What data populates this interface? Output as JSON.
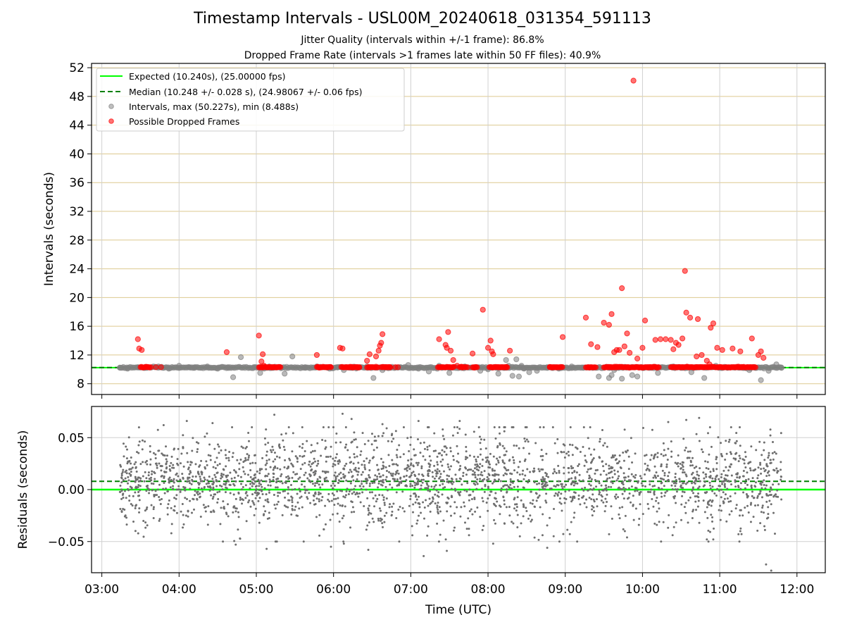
{
  "chart_data": [
    {
      "type": "scatter",
      "panel": "top",
      "title": "Timestamp Intervals - USL00M_20240618_031354_591113",
      "subtitle_1": "Jitter Quality (intervals within +/-1 frame): 86.8%",
      "subtitle_2": "Dropped Frame Rate (intervals >1 frames late within 50 FF files): 40.9%",
      "ylabel": "Intervals (seconds)",
      "xlim": [
        "02:52",
        "12:22"
      ],
      "ylim": [
        6.5,
        52.6
      ],
      "yticks": [
        "8",
        "12",
        "16",
        "20",
        "24",
        "28",
        "32",
        "36",
        "40",
        "44",
        "48",
        "52"
      ],
      "grid": "on",
      "legend_position": "upper-left",
      "legend": [
        {
          "label": "Expected (10.240s), (25.00000 fps)",
          "color": "#00ff00",
          "style": "solid"
        },
        {
          "label": "Median (10.248 +/- 0.028 s), (24.98067 +/- 0.06 fps)",
          "color": "#008000",
          "style": "dashed"
        },
        {
          "label": "Intervals, max (50.227s), min (8.488s)",
          "color": "#808080",
          "style": "marker"
        },
        {
          "label": "Possible Dropped Frames",
          "color": "#ff0000",
          "style": "marker"
        }
      ],
      "expected_interval": 10.24,
      "median_interval": 10.248,
      "interval_points": {
        "x": [
          "03:14",
          "03:20",
          "03:28",
          "03:35",
          "03:44",
          "03:52",
          "04:00",
          "04:08",
          "04:12",
          "04:22",
          "04:30",
          "04:38",
          "04:42",
          "04:48",
          "04:58",
          "05:03",
          "05:06",
          "05:10",
          "05:22",
          "05:28",
          "05:38",
          "05:47",
          "05:57",
          "06:03",
          "06:08",
          "06:18",
          "06:26",
          "06:31",
          "06:38",
          "06:52",
          "06:58",
          "07:06",
          "07:14",
          "07:22",
          "07:30",
          "07:42",
          "07:54",
          "08:00",
          "08:08",
          "08:14",
          "08:16",
          "08:19",
          "08:22",
          "08:24",
          "08:26",
          "08:28",
          "08:32",
          "08:38",
          "08:46",
          "08:55",
          "09:05",
          "09:14",
          "09:26",
          "09:34",
          "09:36",
          "09:38",
          "09:44",
          "09:52",
          "09:56",
          "10:01",
          "10:12",
          "10:24",
          "10:32",
          "10:38",
          "10:48",
          "10:57",
          "11:06",
          "11:14",
          "11:23",
          "11:32",
          "11:38",
          "11:44",
          "11:48"
        ],
        "y": [
          10.24,
          10.1,
          10.3,
          10.2,
          10.4,
          10.1,
          10.5,
          10.3,
          10.2,
          10.4,
          10.1,
          10.3,
          8.9,
          11.7,
          10.3,
          9.5,
          10.1,
          10.4,
          9.4,
          11.8,
          10.2,
          10.4,
          10.1,
          10.3,
          9.9,
          10.2,
          10.4,
          8.8,
          9.9,
          10.3,
          10.6,
          10.1,
          9.7,
          10.5,
          9.5,
          10.4,
          9.8,
          10.0,
          9.4,
          11.3,
          10.5,
          9.1,
          11.4,
          9.0,
          10.5,
          10.1,
          9.6,
          9.8,
          10.3,
          10.1,
          10.4,
          10.2,
          9.0,
          8.8,
          9.2,
          9.9,
          8.7,
          9.2,
          9.0,
          10.2,
          9.5,
          10.4,
          10.3,
          9.6,
          8.8,
          10.5,
          10.2,
          10.3,
          9.9,
          8.5,
          9.8,
          10.7,
          10.2
        ]
      },
      "dropped_points": {
        "x": [
          "03:28",
          "03:29",
          "03:31",
          "03:34",
          "03:38",
          "03:42",
          "03:46",
          "04:37",
          "05:02",
          "05:04",
          "05:05",
          "05:06",
          "05:08",
          "05:12",
          "05:16",
          "05:47",
          "05:48",
          "05:50",
          "05:55",
          "05:58",
          "06:05",
          "06:07",
          "06:10",
          "06:14",
          "06:18",
          "06:20",
          "06:26",
          "06:28",
          "06:33",
          "06:35",
          "06:36",
          "06:37",
          "06:38",
          "06:40",
          "06:44",
          "06:48",
          "06:50",
          "07:22",
          "07:27",
          "07:28",
          "07:29",
          "07:31",
          "07:33",
          "07:36",
          "07:40",
          "07:44",
          "07:48",
          "07:56",
          "08:00",
          "08:02",
          "08:03",
          "08:04",
          "08:05",
          "08:08",
          "08:14",
          "08:17",
          "08:48",
          "08:50",
          "08:53",
          "08:58",
          "09:16",
          "09:20",
          "09:25",
          "09:30",
          "09:34",
          "09:36",
          "09:38",
          "09:40",
          "09:42",
          "09:44",
          "09:46",
          "09:48",
          "09:50",
          "09:53",
          "09:56",
          "10:00",
          "10:02",
          "10:04",
          "10:06",
          "10:10",
          "10:14",
          "10:18",
          "10:22",
          "10:24",
          "10:26",
          "10:28",
          "10:31",
          "10:33",
          "10:34",
          "10:37",
          "10:42",
          "10:43",
          "10:46",
          "10:50",
          "10:52",
          "10:53",
          "10:55",
          "10:58",
          "11:02",
          "11:10",
          "11:16",
          "11:25",
          "11:30",
          "11:32",
          "11:34"
        ],
        "y": [
          14.2,
          12.9,
          12.7,
          10.3,
          10.3,
          10.3,
          10.3,
          12.4,
          14.7,
          11.1,
          12.1,
          10.5,
          10.3,
          10.3,
          10.3,
          12.0,
          10.3,
          10.3,
          10.3,
          10.3,
          13.0,
          12.9,
          10.3,
          10.3,
          10.3,
          10.3,
          11.2,
          12.1,
          11.8,
          12.6,
          13.3,
          13.7,
          14.9,
          10.3,
          10.3,
          10.3,
          10.3,
          14.2,
          13.4,
          13.0,
          15.2,
          12.6,
          11.3,
          10.5,
          10.3,
          10.3,
          12.2,
          18.3,
          13.0,
          14.0,
          12.5,
          12.1,
          10.3,
          10.3,
          10.3,
          12.6,
          10.3,
          10.3,
          10.3,
          14.5,
          17.2,
          13.5,
          13.1,
          16.5,
          16.2,
          17.7,
          12.4,
          12.7,
          12.7,
          21.3,
          13.2,
          15.0,
          12.3,
          50.2,
          11.5,
          13.0,
          16.8,
          10.3,
          10.3,
          14.1,
          14.2,
          14.2,
          14.1,
          12.8,
          13.7,
          13.4,
          14.3,
          23.7,
          17.9,
          17.2,
          11.8,
          17.0,
          12.0,
          11.2,
          10.7,
          15.8,
          16.4,
          13.0,
          12.7,
          12.9,
          12.5,
          14.3,
          12.0,
          12.5,
          11.6
        ]
      },
      "dropped_bands": [
        [
          "03:30",
          "03:37"
        ],
        [
          "05:02",
          "05:19"
        ],
        [
          "05:47",
          "05:58"
        ],
        [
          "06:06",
          "06:20"
        ],
        [
          "06:26",
          "06:35"
        ],
        [
          "06:37",
          "06:44"
        ],
        [
          "07:21",
          "07:34"
        ],
        [
          "07:38",
          "07:43"
        ],
        [
          "07:48",
          "07:52"
        ],
        [
          "08:01",
          "08:15"
        ],
        [
          "08:48",
          "08:58"
        ],
        [
          "09:16",
          "09:24"
        ],
        [
          "09:30",
          "10:13"
        ],
        [
          "10:22",
          "11:28"
        ]
      ]
    },
    {
      "type": "scatter",
      "panel": "bottom",
      "xlabel": "Time (UTC)",
      "ylabel": "Residuals (seconds)",
      "xlim": [
        "02:52",
        "12:22"
      ],
      "ylim": [
        -0.08,
        0.08
      ],
      "xticks": [
        "03:00",
        "04:00",
        "05:00",
        "06:00",
        "07:00",
        "08:00",
        "09:00",
        "10:00",
        "11:00",
        "12:00"
      ],
      "yticks": [
        "0.05",
        "0.00",
        "−0.05"
      ],
      "grid": "on",
      "zero_line": 0.0,
      "median_offset": 0.008,
      "residual_range": {
        "start": "03:14",
        "end": "11:48",
        "center": 0.008,
        "spread": 0.022,
        "count": 2600
      },
      "residual_outliers": {
        "x": [
          "03:48",
          "03:54",
          "04:06",
          "04:26",
          "04:44",
          "05:08",
          "05:14",
          "05:58",
          "06:07",
          "06:08",
          "06:14",
          "06:16",
          "06:27",
          "06:38",
          "07:06",
          "07:10",
          "07:14",
          "07:28",
          "07:38",
          "08:04",
          "08:46",
          "09:48",
          "10:20",
          "10:34",
          "10:44",
          "10:50",
          "11:16",
          "11:36",
          "11:40"
        ],
        "y": [
          0.062,
          -0.042,
          0.066,
          0.064,
          -0.053,
          -0.057,
          0.072,
          -0.055,
          0.073,
          -0.052,
          0.068,
          0.055,
          -0.058,
          0.063,
          0.066,
          -0.064,
          0.06,
          -0.059,
          0.066,
          -0.052,
          -0.056,
          -0.046,
          0.065,
          0.067,
          0.069,
          -0.048,
          -0.04,
          -0.072,
          -0.078
        ]
      },
      "line_colors": {
        "expected": "#00ff00",
        "median": "#008000",
        "points": "#808080"
      }
    }
  ]
}
